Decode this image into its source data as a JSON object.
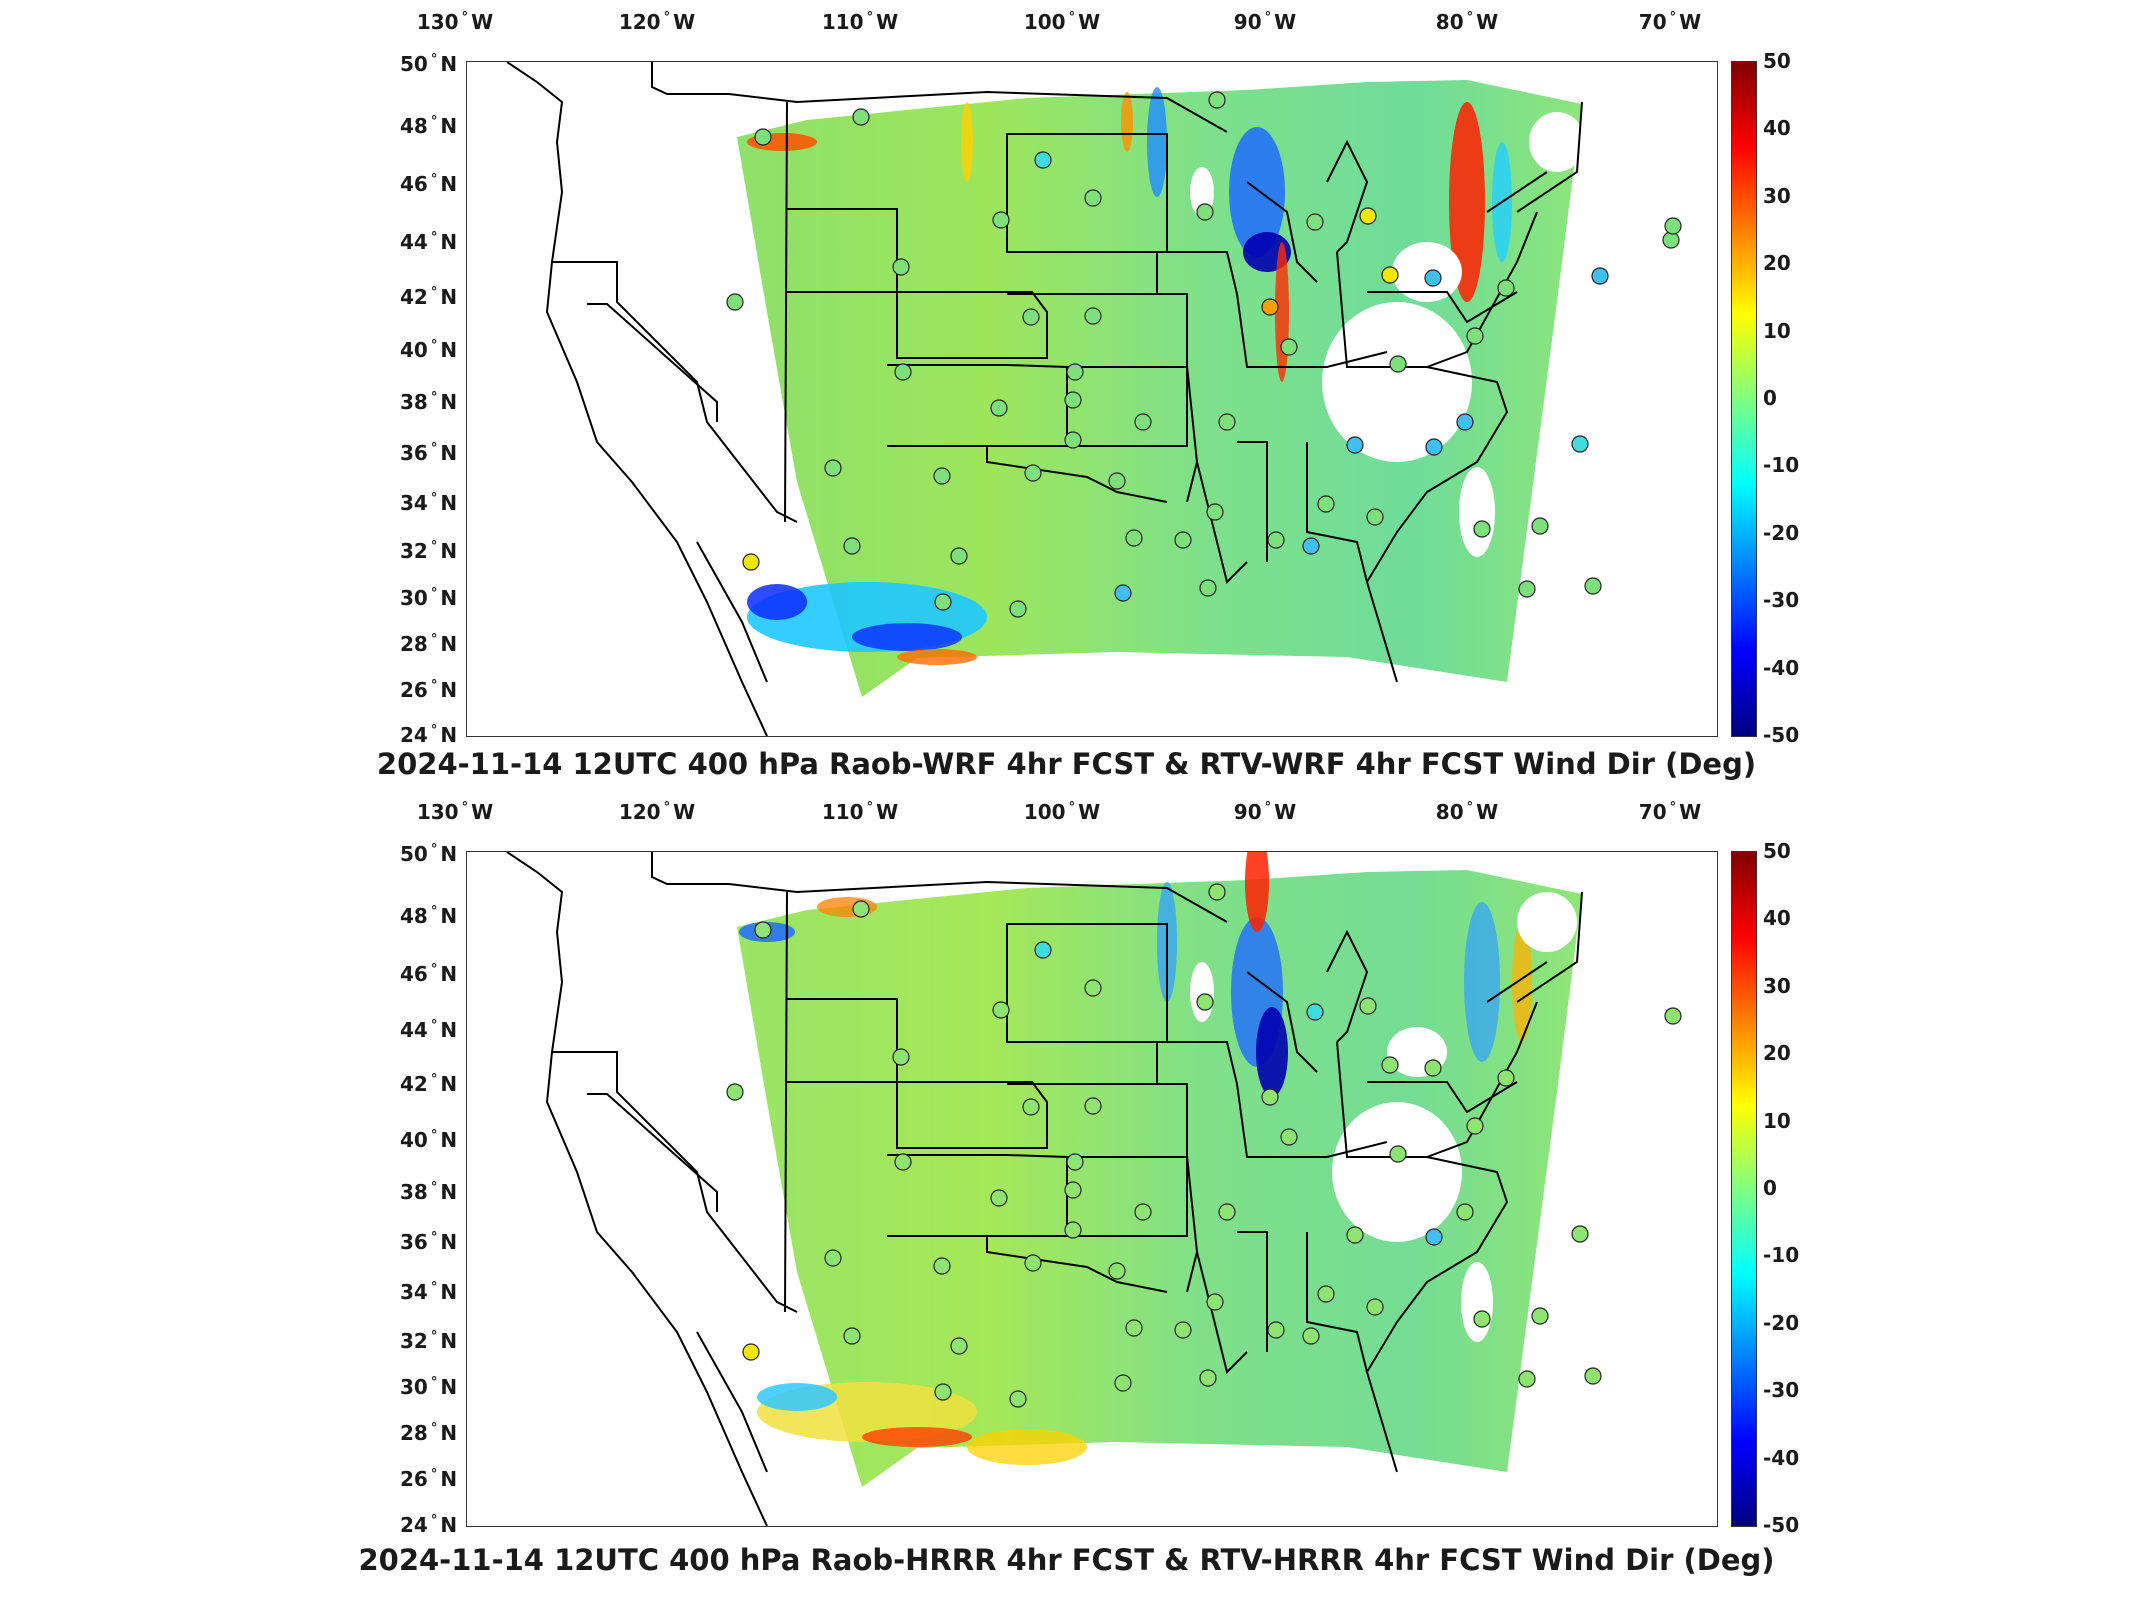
{
  "panels": [
    {
      "id": "top",
      "title": "2024-11-14 12UTC 400 hPa Raob-WRF 4hr FCST & RTV-WRF 4hr FCST Wind Dir (Deg)"
    },
    {
      "id": "bottom",
      "title": "2024-11-14 12UTC 400 hPa Raob-HRRR 4hr FCST & RTV-HRRR 4hr FCST Wind Dir (Deg)"
    }
  ],
  "lon_labels": [
    "130",
    "120",
    "110",
    "100",
    "90",
    "80",
    "70"
  ],
  "lon_suffix": "W",
  "lat_labels": [
    "50",
    "48",
    "46",
    "44",
    "42",
    "40",
    "38",
    "36",
    "34",
    "32",
    "30",
    "28",
    "26",
    "24"
  ],
  "lat_suffix": "N",
  "degree_symbol": "°",
  "colorbar": {
    "ticks": [
      "50",
      "40",
      "30",
      "20",
      "10",
      "0",
      "-10",
      "-20",
      "-30",
      "-40",
      "-50"
    ],
    "min": -50,
    "max": 50,
    "colormap": "jet"
  }
}
